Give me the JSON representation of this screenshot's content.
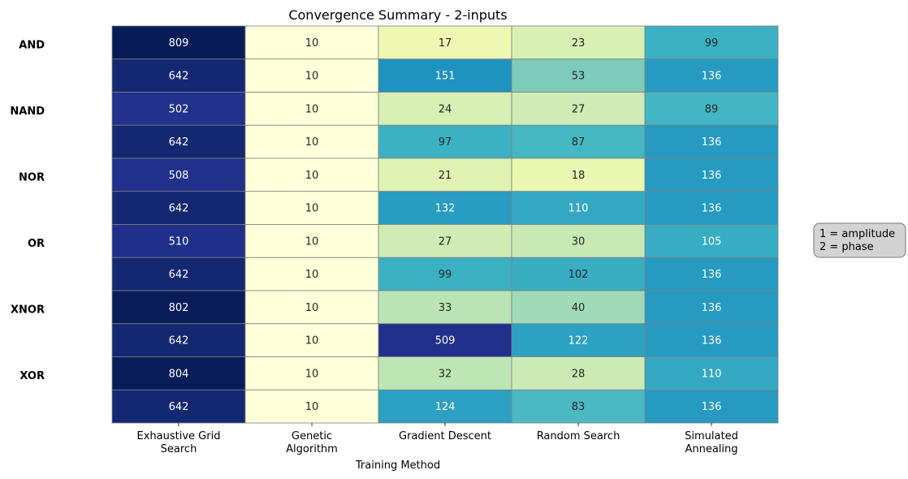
{
  "chart_data": {
    "type": "heatmap",
    "title": "Convergence Summary - 2-inputs",
    "xlabel": "Training Method",
    "ylabel": "",
    "columns": [
      "Exhaustive Grid\nSearch",
      "Genetic\nAlgorithm",
      "Gradient Descent",
      "Random Search",
      "Simulated\nAnnealing"
    ],
    "row_groups": [
      "AND",
      "NAND",
      "NOR",
      "OR",
      "XNOR",
      "XOR"
    ],
    "rows_per_group": 2,
    "values": [
      [
        809,
        10,
        17,
        23,
        99
      ],
      [
        642,
        10,
        151,
        53,
        136
      ],
      [
        502,
        10,
        24,
        27,
        89
      ],
      [
        642,
        10,
        97,
        87,
        136
      ],
      [
        508,
        10,
        21,
        18,
        136
      ],
      [
        642,
        10,
        132,
        110,
        136
      ],
      [
        510,
        10,
        27,
        30,
        105
      ],
      [
        642,
        10,
        99,
        102,
        136
      ],
      [
        802,
        10,
        33,
        40,
        136
      ],
      [
        642,
        10,
        509,
        122,
        136
      ],
      [
        804,
        10,
        32,
        28,
        110
      ],
      [
        642,
        10,
        124,
        83,
        136
      ]
    ],
    "colormap": "YlGnBu",
    "color_scale": "log",
    "grid": true,
    "colorbar": false,
    "legend_note": [
      "1 = amplitude",
      "2 = phase"
    ],
    "legend_placement": "right"
  }
}
